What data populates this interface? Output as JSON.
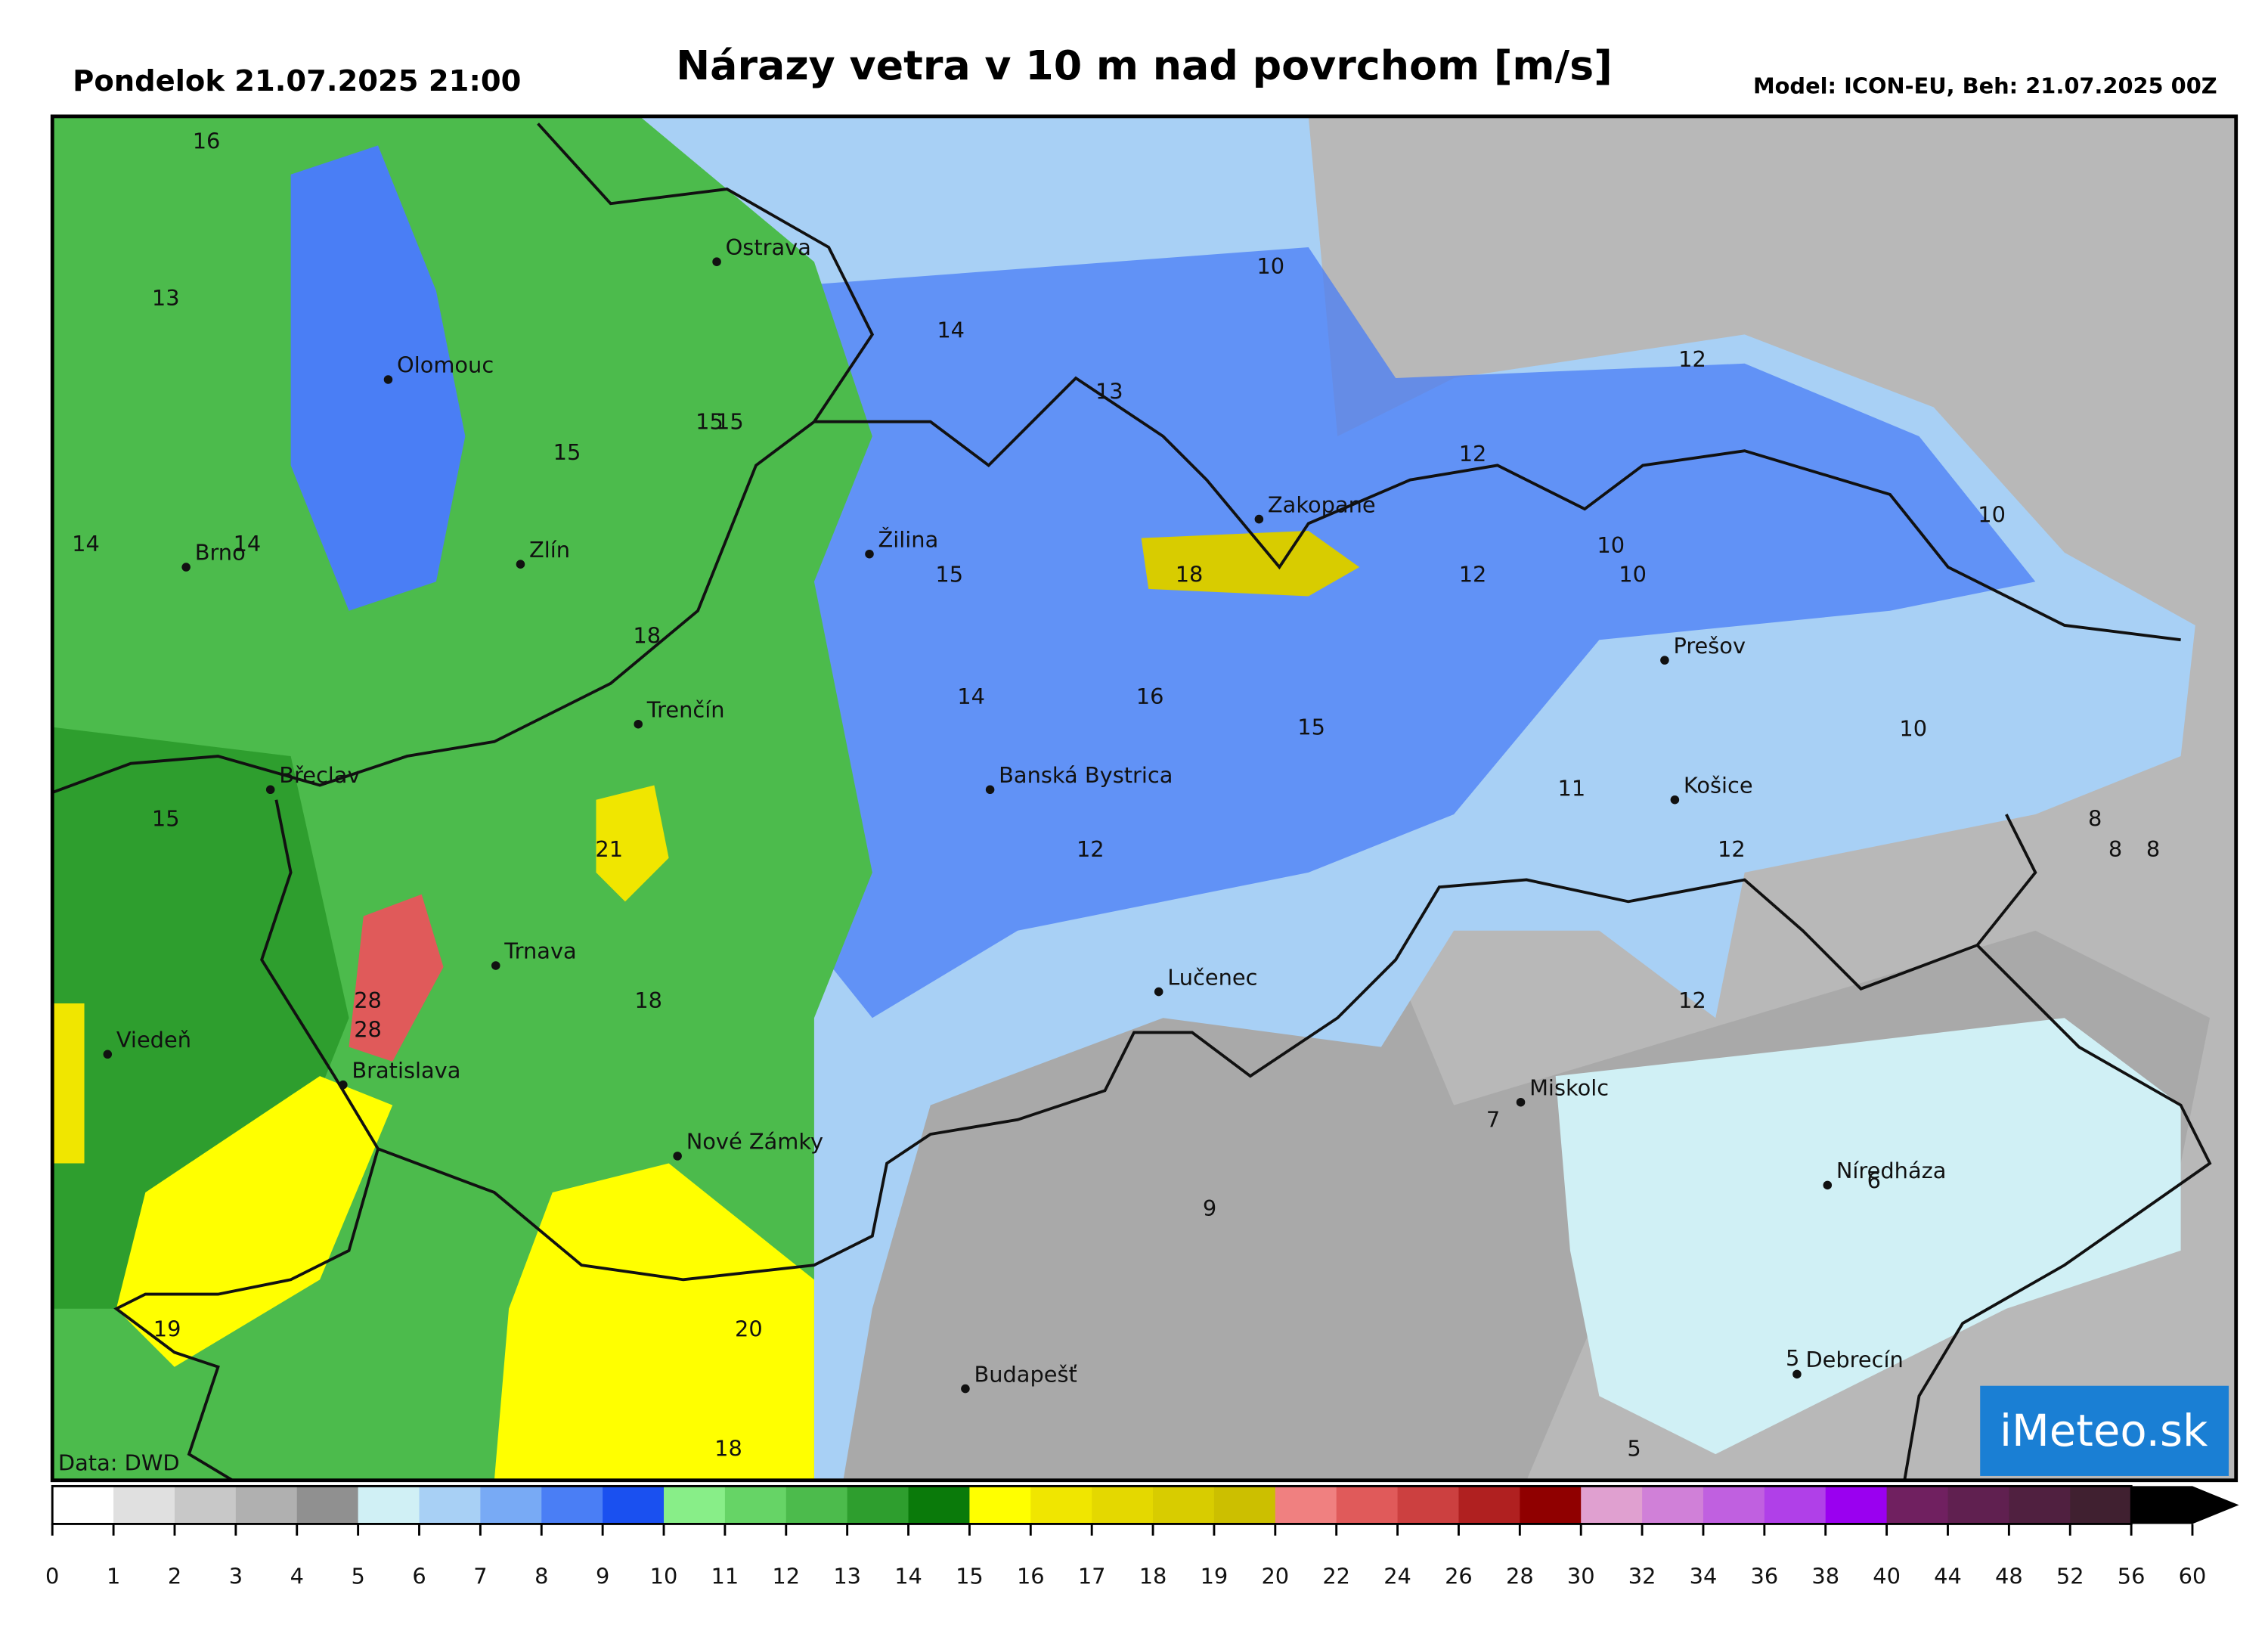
{
  "header": {
    "left": "Pondelok 21.07.2025 21:00",
    "title": "Nárazy vetra v 10 m nad povrchom [m/s]",
    "right": "Model: ICON-EU, Beh: 21.07.2025 00Z"
  },
  "cities": [
    "Ostrava",
    "Olomouc",
    "Zlín",
    "Brno",
    "Žilina",
    "Zakopane",
    "Trenčín",
    "Břeclav",
    "Banská Bystrica",
    "Prešov",
    "Košice",
    "Trnava",
    "Lučenec",
    "Viedeň",
    "Bratislava",
    "Nové Zámky",
    "Miskolc",
    "Níredháza",
    "Budapešť",
    "Debrecín"
  ],
  "map_values": [
    16,
    13,
    14,
    14,
    15,
    15,
    15,
    14,
    13,
    10,
    12,
    12,
    10,
    10,
    10,
    12,
    18,
    15,
    18,
    14,
    16,
    15,
    10,
    11,
    15,
    21,
    12,
    12,
    8,
    8,
    8,
    28,
    28,
    18,
    12,
    7,
    6,
    9,
    19,
    20,
    5,
    18,
    5
  ],
  "source": "Data: DWD",
  "logo": "iMeteo.sk",
  "legend": {
    "ticks": [
      0,
      1,
      2,
      3,
      4,
      5,
      6,
      7,
      8,
      9,
      10,
      11,
      12,
      13,
      14,
      15,
      16,
      17,
      18,
      19,
      20,
      22,
      24,
      26,
      28,
      30,
      32,
      34,
      36,
      38,
      40,
      44,
      48,
      52,
      56,
      60
    ],
    "colors": [
      "#ffffff",
      "#e0e0e0",
      "#c8c8c8",
      "#b0b0b0",
      "#909090",
      "#d0f0f5",
      "#a8d0f5",
      "#78aaf5",
      "#4a7ef5",
      "#1a50f0",
      "#88ee88",
      "#66d466",
      "#4cbb4c",
      "#2e9e2e",
      "#0a7a0a",
      "#ffff00",
      "#f0e600",
      "#e4d800",
      "#d8cc00",
      "#ccbf00",
      "#f08080",
      "#e05a5a",
      "#cc4040",
      "#b02020",
      "#900000",
      "#e0a0d0",
      "#d080d8",
      "#c060e0",
      "#b040e8",
      "#9a00f0",
      "#702060",
      "#602050",
      "#502040",
      "#402030",
      "#000000"
    ]
  }
}
